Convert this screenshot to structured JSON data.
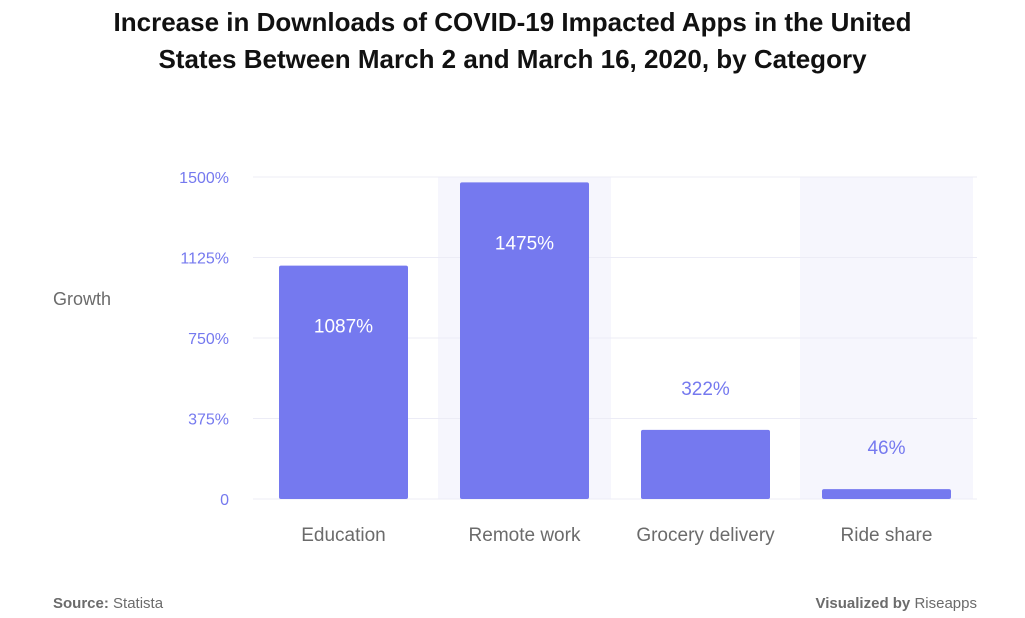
{
  "title_line1": "Increase in Downloads of COVID-19 Impacted Apps in the United",
  "title_line2": "States Between March 2 and March 16, 2020, by Category",
  "footer": {
    "source_label": "Source:",
    "source_value": "Statista",
    "visualized_label": "Visualized by",
    "visualized_value": "Riseapps"
  },
  "colors": {
    "bar": "#7579ef",
    "band": "#f6f6fd",
    "tick": "#7579ef",
    "axis_label": "#6b6b6b",
    "bar_label_inside": "#ffffff",
    "bar_label_outside": "#7579ef"
  },
  "chart_data": {
    "type": "bar",
    "title": "Increase in Downloads of COVID-19 Impacted Apps in the United States Between March 2 and March 16, 2020, by Category",
    "xlabel": "",
    "ylabel": "Growth",
    "categories": [
      "Education",
      "Remote work",
      "Grocery delivery",
      "Ride share"
    ],
    "values": [
      1087,
      1475,
      322,
      46
    ],
    "value_labels": [
      "1087%",
      "1475%",
      "322%",
      "46%"
    ],
    "ylim": [
      0,
      1500
    ],
    "yticks": [
      0,
      375,
      750,
      1125,
      1500
    ],
    "ytick_labels": [
      "0",
      "375%",
      "750%",
      "1125%",
      "1500%"
    ],
    "grid": true,
    "legend": "none"
  }
}
